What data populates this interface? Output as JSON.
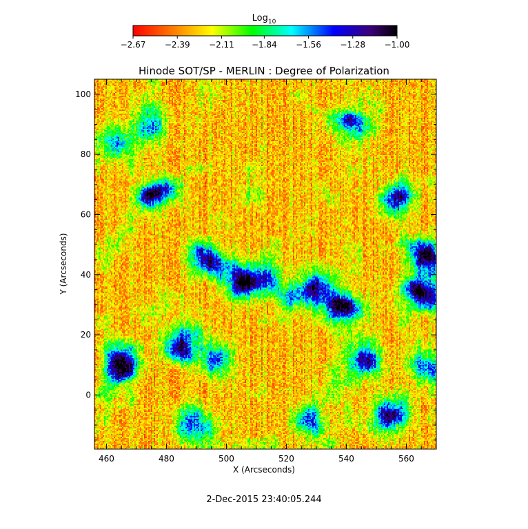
{
  "chart_data": {
    "type": "heatmap",
    "title": "Hinode SOT/SP - MERLIN : Degree of Polarization",
    "xlabel": "X (Arcseconds)",
    "ylabel": "Y (Arcseconds)",
    "xlim": [
      456,
      570
    ],
    "ylim": [
      -18,
      105
    ],
    "x_ticks": [
      460,
      480,
      500,
      520,
      540,
      560
    ],
    "y_ticks": [
      0,
      20,
      40,
      60,
      80,
      100
    ],
    "colorbar": {
      "label_main": "Log",
      "label_sub": "10",
      "range": [
        -2.67,
        -1.0
      ],
      "tick_values": [
        -2.67,
        -2.39,
        -2.11,
        -1.84,
        -1.56,
        -1.28,
        -1.0
      ],
      "tick_labels": [
        "−2.67",
        "−2.39",
        "−2.11",
        "−1.84",
        "−1.56",
        "−1.28",
        "−1.00"
      ],
      "colormap": [
        "#ff0000",
        "#ff7a00",
        "#ffff00",
        "#00ff00",
        "#00ffff",
        "#0000ff",
        "#3c0078",
        "#000000"
      ]
    },
    "field_features": [
      {
        "x": 465,
        "y": 10,
        "strength": 1.0
      },
      {
        "x": 476,
        "y": 67,
        "strength": 0.95
      },
      {
        "x": 504,
        "y": 39,
        "strength": 1.0
      },
      {
        "x": 485,
        "y": 18,
        "strength": 0.85
      },
      {
        "x": 539,
        "y": 29,
        "strength": 0.95
      },
      {
        "x": 567,
        "y": 45,
        "strength": 1.0
      },
      {
        "x": 566,
        "y": 32,
        "strength": 0.9
      },
      {
        "x": 553,
        "y": -6,
        "strength": 0.9
      },
      {
        "x": 545,
        "y": 12,
        "strength": 0.75
      },
      {
        "x": 493,
        "y": 44,
        "strength": 0.8
      },
      {
        "x": 497,
        "y": 12,
        "strength": 0.6
      },
      {
        "x": 531,
        "y": 36,
        "strength": 0.75
      },
      {
        "x": 540,
        "y": 90,
        "strength": 0.75
      },
      {
        "x": 474,
        "y": 90,
        "strength": 0.55
      },
      {
        "x": 462,
        "y": 85,
        "strength": 0.5
      },
      {
        "x": 555,
        "y": 64,
        "strength": 0.7
      },
      {
        "x": 489,
        "y": -11,
        "strength": 0.6
      },
      {
        "x": 529,
        "y": -10,
        "strength": 0.6
      },
      {
        "x": 513,
        "y": 40,
        "strength": 0.6
      },
      {
        "x": 522,
        "y": 33,
        "strength": 0.5
      },
      {
        "x": 566,
        "y": 10,
        "strength": 0.6
      }
    ]
  },
  "footer": {
    "timestamp": "2-Dec-2015 23:40:05.244"
  }
}
